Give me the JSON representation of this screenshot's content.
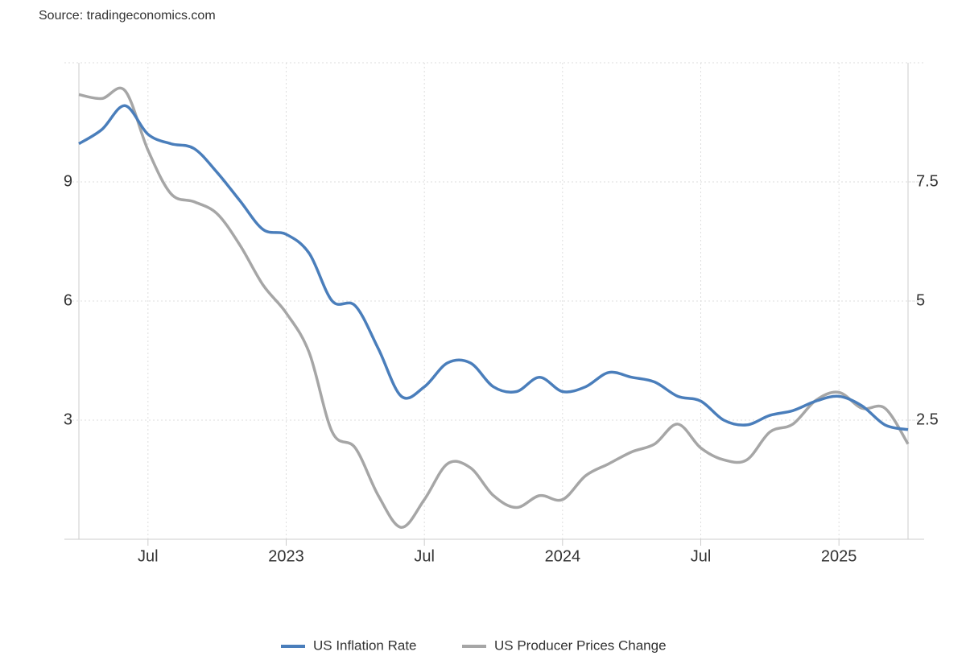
{
  "chart_data": {
    "type": "line",
    "source": "Source: tradingeconomics.com",
    "categories": [
      null,
      null,
      null,
      "Jul",
      null,
      null,
      null,
      null,
      null,
      "2023",
      null,
      null,
      null,
      null,
      null,
      "Jul",
      null,
      null,
      null,
      null,
      null,
      "2024",
      null,
      null,
      null,
      null,
      null,
      "Jul",
      null,
      null,
      null,
      null,
      null,
      "2025",
      null,
      null,
      null
    ],
    "series": [
      {
        "name": "US Inflation Rate",
        "color": "#4a7ebb",
        "axis": "y2",
        "values": [
          8.3,
          8.6,
          9.1,
          8.5,
          8.3,
          8.2,
          7.7,
          7.1,
          6.5,
          6.4,
          6.0,
          5.0,
          4.9,
          4.0,
          3.0,
          3.2,
          3.7,
          3.7,
          3.2,
          3.1,
          3.4,
          3.1,
          3.2,
          3.5,
          3.4,
          3.3,
          3.0,
          2.9,
          2.5,
          2.4,
          2.6,
          2.7,
          2.9,
          3.0,
          2.8,
          2.4,
          2.3
        ]
      },
      {
        "name": "US Producer Prices Change",
        "color": "#a6a6a6",
        "values": [
          11.2,
          11.1,
          11.3,
          9.8,
          8.7,
          8.5,
          8.2,
          7.4,
          6.4,
          5.7,
          4.7,
          2.7,
          2.3,
          1.1,
          0.3,
          1.0,
          1.9,
          1.8,
          1.1,
          0.8,
          1.1,
          1.0,
          1.6,
          1.9,
          2.2,
          2.4,
          2.9,
          2.3,
          2.0,
          2.0,
          2.7,
          2.9,
          3.5,
          3.7,
          3.3,
          3.3,
          2.4
        ]
      }
    ],
    "ylim": [
      0,
      12
    ],
    "yticks": [
      3,
      6,
      9
    ],
    "y2lim": [
      0,
      10
    ],
    "y2ticks": [
      2.5,
      5,
      7.5
    ],
    "grid": true,
    "legend": "bottom"
  }
}
